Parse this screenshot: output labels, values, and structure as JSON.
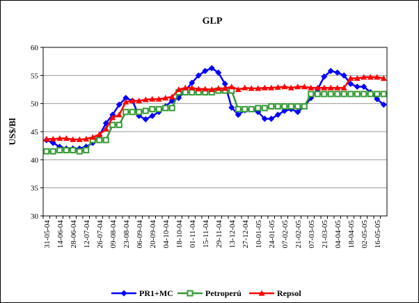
{
  "chart_data": {
    "type": "line",
    "title": "GLP",
    "y_label": "US$/Bl",
    "categories": [
      "31-05-04",
      null,
      "14-06-04",
      null,
      "28-06-04",
      null,
      "12-07-04",
      null,
      "26-07-04",
      null,
      "09-08-04",
      null,
      "23-08-04",
      null,
      "06-09-04",
      null,
      "20-09-04",
      null,
      "04-10-04",
      null,
      "18-10-04",
      null,
      "01-11-04",
      null,
      "15-11-04",
      null,
      "29-11-04",
      null,
      "13-12-04",
      null,
      "27-12-04",
      null,
      "10-01-05",
      null,
      "24-01-05",
      null,
      "07-02-05",
      null,
      "21-02-05",
      null,
      "07-03-05",
      null,
      "21-03-05",
      null,
      "04-04-05",
      null,
      "18-04-05",
      null,
      "02-05-05",
      null,
      "16-05-05",
      null
    ],
    "series": [
      {
        "name": "PR1+MC",
        "color": "#0000ff",
        "marker": "diamond",
        "values": [
          43.5,
          43,
          42.3,
          42,
          42,
          42,
          42.3,
          43,
          44.3,
          46.5,
          48,
          49.8,
          51,
          50.5,
          47.8,
          47.2,
          47.8,
          48.5,
          49.5,
          50.5,
          51,
          52.3,
          53.7,
          55,
          55.8,
          56.3,
          55.5,
          53.5,
          49.3,
          48,
          48.8,
          49,
          48.5,
          47.3,
          47.3,
          48,
          48.7,
          49,
          48.5,
          49.5,
          51,
          52.5,
          54.8,
          55.8,
          55.5,
          55,
          53.5,
          53,
          53,
          52,
          50.8,
          49.8
        ]
      },
      {
        "name": "Petroperú",
        "color": "#339933",
        "marker": "square",
        "values": [
          41.5,
          41.5,
          41.7,
          41.7,
          41.7,
          41.5,
          41.7,
          43.5,
          43.5,
          43.5,
          46.2,
          46.2,
          48.5,
          48.5,
          48.5,
          48.7,
          49,
          49,
          49.2,
          49.2,
          52,
          52,
          52,
          52,
          52,
          52,
          52.3,
          52.3,
          52.3,
          49,
          49,
          49,
          49.2,
          49.2,
          49.5,
          49.5,
          49.5,
          49.5,
          49.5,
          49.5,
          51.7,
          51.7,
          51.7,
          51.7,
          51.7,
          51.7,
          51.7,
          51.7,
          51.7,
          51.7,
          51.7,
          51.7
        ]
      },
      {
        "name": "Repsol",
        "color": "#ff0000",
        "marker": "triangle",
        "values": [
          43.7,
          43.7,
          43.8,
          43.8,
          43.6,
          43.6,
          43.7,
          44,
          44.5,
          45.5,
          47.5,
          48,
          50.3,
          50.5,
          50.5,
          50.7,
          50.8,
          50.8,
          51,
          51.2,
          52.5,
          52.8,
          52.8,
          52.6,
          52.6,
          52.5,
          52.7,
          52.7,
          53,
          52.5,
          52.8,
          52.7,
          52.7,
          52.8,
          52.8,
          52.9,
          53,
          52.8,
          53,
          53,
          52.8,
          52.8,
          52.8,
          52.8,
          52.8,
          52.8,
          54.5,
          54.5,
          54.7,
          54.7,
          54.7,
          54.5
        ]
      }
    ],
    "ylim": [
      30,
      60
    ],
    "yticks": [
      30,
      35,
      40,
      45,
      50,
      55,
      60
    ],
    "grid": true,
    "legend": "bottom"
  }
}
